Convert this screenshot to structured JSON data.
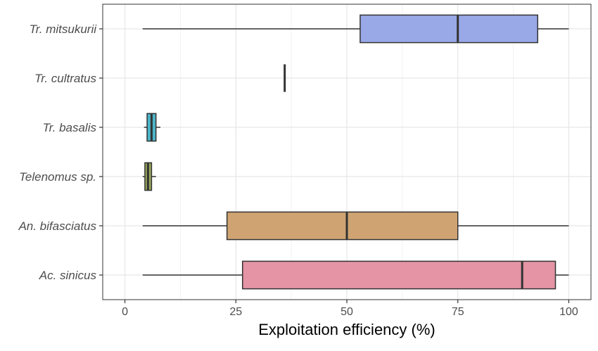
{
  "chart_data": {
    "type": "boxplot",
    "title": "",
    "xlabel": "Exploitation efficiency (%)",
    "ylabel": "",
    "xlim": [
      -5,
      105
    ],
    "x_ticks": [
      0,
      25,
      50,
      75,
      100
    ],
    "x_tick_labels": [
      "0",
      "25",
      "50",
      "75",
      "100"
    ],
    "grid": true,
    "legend": "none",
    "categories": [
      "Tr. mitsukurii",
      "Tr. cultratus",
      "Tr. basalis",
      "Telenomus sp.",
      "An. bifasciatus",
      "Ac. sinicus"
    ],
    "boxes": [
      {
        "category": "Tr. mitsukurii",
        "min": 4,
        "q1": 53,
        "median": 75,
        "q3": 93,
        "max": 100,
        "color": "#99a8e6"
      },
      {
        "category": "Tr. cultratus",
        "min": 36,
        "q1": 36,
        "median": 36,
        "q3": 36,
        "max": 36,
        "color": "#7fc97f"
      },
      {
        "category": "Tr. basalis",
        "min": 4.3,
        "q1": 5,
        "median": 6,
        "q3": 7,
        "max": 8,
        "color": "#4bb4c8"
      },
      {
        "category": "Telenomus sp.",
        "min": 4,
        "q1": 4.5,
        "median": 5.2,
        "q3": 6,
        "max": 7,
        "color": "#98a85a"
      },
      {
        "category": "An. bifasciatus",
        "min": 4,
        "q1": 23,
        "median": 50,
        "q3": 75,
        "max": 100,
        "color": "#cfa472"
      },
      {
        "category": "Ac. sinicus",
        "min": 4,
        "q1": 26.5,
        "median": 89.5,
        "q3": 97,
        "max": 100,
        "color": "#e494a4"
      }
    ]
  }
}
